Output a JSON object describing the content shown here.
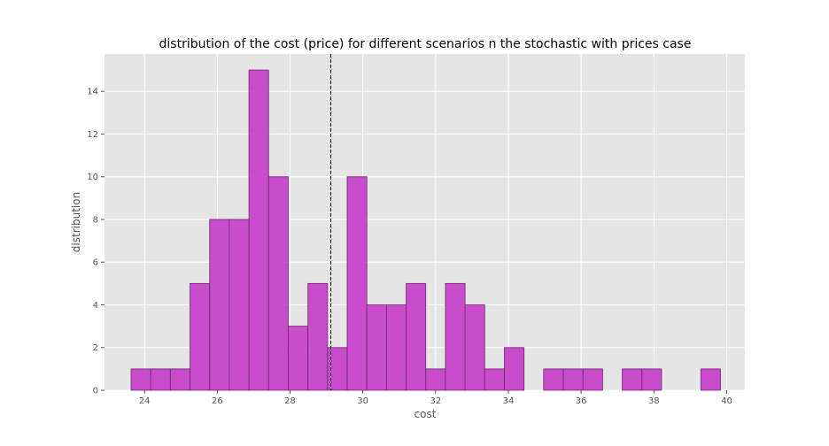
{
  "chart_data": {
    "type": "bar",
    "title": "distribution of the cost (price) for different scenarios n the stochastic with prices case",
    "xlabel": "cost",
    "ylabel": "distribution",
    "xlim": [
      22.9,
      40.5
    ],
    "ylim": [
      0,
      15.75
    ],
    "xticks": [
      24,
      26,
      28,
      30,
      32,
      34,
      36,
      38,
      40
    ],
    "yticks": [
      0,
      2,
      4,
      6,
      8,
      10,
      12,
      14
    ],
    "grid": true,
    "legend": "none",
    "mean_line": 29.12,
    "bin_width": 0.54,
    "bins": [
      {
        "left": 23.63,
        "count": 1
      },
      {
        "left": 24.17,
        "count": 1
      },
      {
        "left": 24.71,
        "count": 1
      },
      {
        "left": 25.25,
        "count": 5
      },
      {
        "left": 25.79,
        "count": 8
      },
      {
        "left": 26.33,
        "count": 8
      },
      {
        "left": 26.87,
        "count": 15
      },
      {
        "left": 27.41,
        "count": 10
      },
      {
        "left": 27.95,
        "count": 3
      },
      {
        "left": 28.49,
        "count": 5
      },
      {
        "left": 29.03,
        "count": 2
      },
      {
        "left": 29.57,
        "count": 10
      },
      {
        "left": 30.11,
        "count": 4
      },
      {
        "left": 30.65,
        "count": 4
      },
      {
        "left": 31.19,
        "count": 5
      },
      {
        "left": 31.73,
        "count": 1
      },
      {
        "left": 32.27,
        "count": 5
      },
      {
        "left": 32.81,
        "count": 4
      },
      {
        "left": 33.35,
        "count": 1
      },
      {
        "left": 33.89,
        "count": 2
      },
      {
        "left": 34.97,
        "count": 1
      },
      {
        "left": 35.51,
        "count": 1
      },
      {
        "left": 36.05,
        "count": 1
      },
      {
        "left": 37.13,
        "count": 1
      },
      {
        "left": 37.67,
        "count": 1
      },
      {
        "left": 39.29,
        "count": 1
      }
    ],
    "colors": {
      "bar_fill": "#c53bc9",
      "bar_edge": "#6b2a6e",
      "axes_background": "#e5e5e5",
      "grid": "#ffffff",
      "mean_line": "#000000"
    }
  }
}
